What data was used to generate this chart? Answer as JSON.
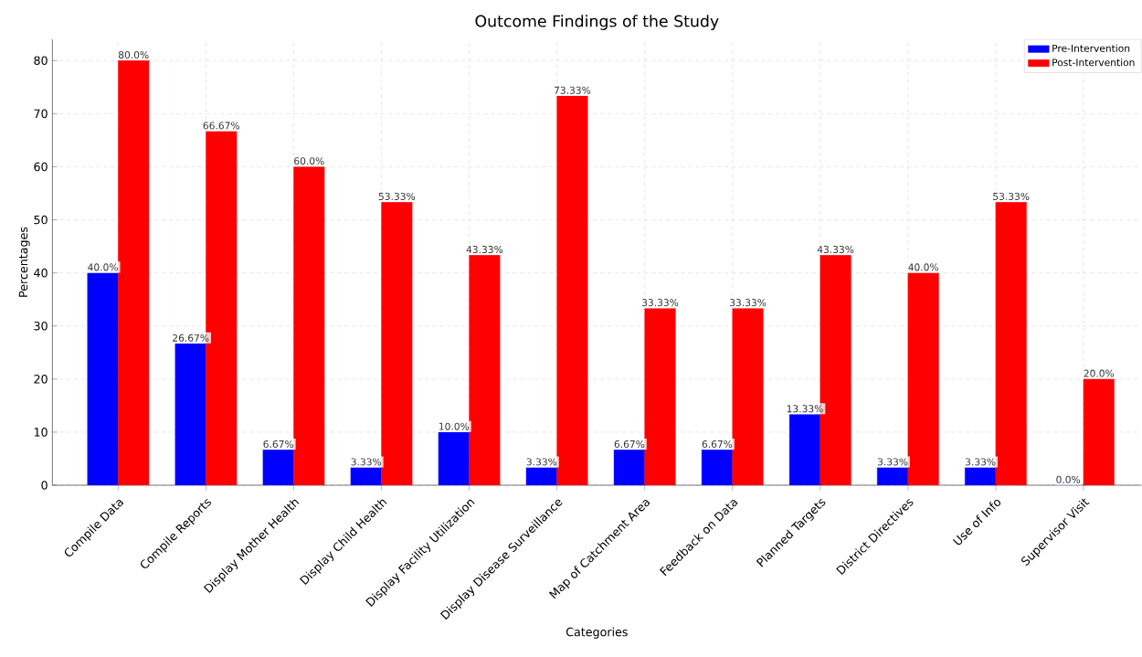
{
  "chart_data": {
    "type": "bar",
    "title": "Outcome Findings of the Study",
    "xlabel": "Categories",
    "ylabel": "Percentages",
    "categories": [
      "Compile Data",
      "Compile Reports",
      "Display Mother Health",
      "Display Child Health",
      "Display Facility Utilization",
      "Display Disease Surveillance",
      "Map of Catchment Area",
      "Feedback on Data",
      "Planned Targets",
      "District Directives",
      "Use of Info",
      "Supervisor Visit"
    ],
    "series": [
      {
        "name": "Pre-Intervention",
        "color": "#0000ff",
        "values": [
          40.0,
          26.67,
          6.67,
          3.33,
          10.0,
          3.33,
          6.67,
          6.67,
          13.33,
          3.33,
          3.33,
          0.0
        ],
        "value_labels": [
          "40.0%",
          "26.67%",
          "6.67%",
          "3.33%",
          "10.0%",
          "3.33%",
          "6.67%",
          "6.67%",
          "13.33%",
          "3.33%",
          "3.33%",
          "0.0%"
        ]
      },
      {
        "name": "Post-Intervention",
        "color": "#ff0000",
        "values": [
          80.0,
          66.67,
          60.0,
          53.33,
          43.33,
          73.33,
          33.33,
          33.33,
          43.33,
          40.0,
          53.33,
          20.0
        ],
        "value_labels": [
          "80.0%",
          "66.67%",
          "60.0%",
          "53.33%",
          "43.33%",
          "73.33%",
          "33.33%",
          "33.33%",
          "43.33%",
          "40.0%",
          "53.33%",
          "20.0%"
        ]
      }
    ],
    "ylim": [
      0,
      84
    ],
    "yticks": [
      0,
      10,
      20,
      30,
      40,
      50,
      60,
      70,
      80
    ],
    "grid": true,
    "legend": "top right"
  }
}
